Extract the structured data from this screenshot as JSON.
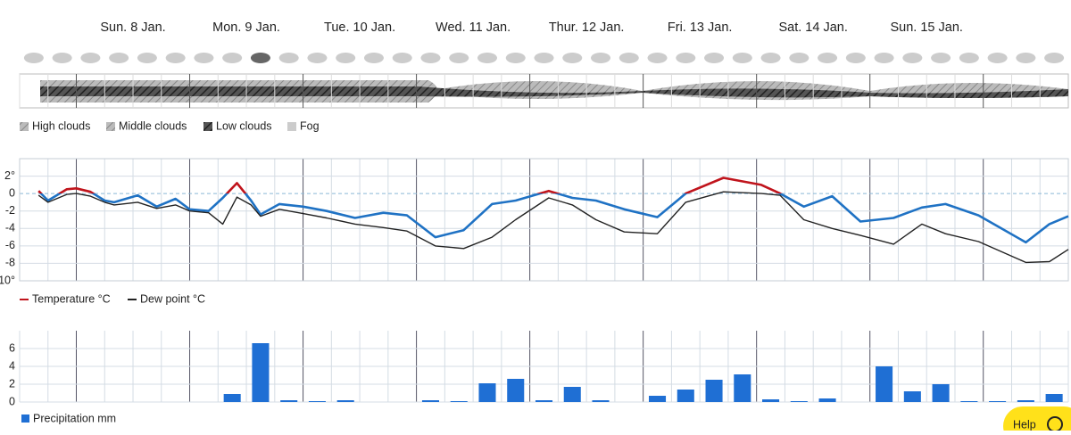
{
  "days": [
    "Sun. 8 Jan.",
    "Mon. 9 Jan.",
    "Tue. 10 Jan.",
    "Wed. 11 Jan.",
    "Thur. 12 Jan.",
    "Fri. 13 Jan.",
    "Sat. 14 Jan.",
    "Sun. 15 Jan."
  ],
  "cloud_legend": [
    "High clouds",
    "Middle clouds",
    "Low clouds",
    "Fog"
  ],
  "help": "Help",
  "chart_data": [
    {
      "type": "line",
      "x": [
        4,
        6,
        10,
        12,
        15,
        18,
        20,
        25,
        29,
        33,
        36,
        40,
        43,
        46,
        49,
        51,
        55,
        60,
        65,
        71,
        77,
        82,
        88,
        94,
        100,
        105,
        112,
        117,
        122,
        128,
        135,
        141,
        149,
        157,
        161,
        166,
        172,
        178,
        185,
        191,
        196,
        203,
        213,
        218,
        222
      ],
      "xlim": [
        0,
        222
      ],
      "ylim": [
        -10,
        4
      ],
      "yticks": [
        {
          "value": 2,
          "label": "2°"
        },
        0,
        -2,
        -4,
        -6,
        -8,
        {
          "value": -10,
          "label": "-10°"
        }
      ],
      "grid": true,
      "series": [
        {
          "name": "Temperature °C",
          "color": "#1f72c4",
          "color_above_zero": "#c0141c",
          "values": [
            0.3,
            -0.8,
            0.5,
            0.6,
            0.2,
            -0.8,
            -1,
            -0.2,
            -1.5,
            -0.6,
            -1.8,
            -2,
            -0.5,
            1.2,
            -0.8,
            -2.4,
            -1.2,
            -1.5,
            -2,
            -2.8,
            -2.2,
            -2.5,
            -5,
            -4.2,
            -1.2,
            -0.8,
            0.3,
            -0.5,
            -0.8,
            -1.8,
            -2.7,
            0,
            1.8,
            1,
            0,
            -1.5,
            -0.3,
            -3.2,
            -2.8,
            -1.6,
            -1.2,
            -2.5,
            -5.6,
            -3.5,
            -2.6
          ]
        },
        {
          "name": "Dew point °C",
          "color": "#222222",
          "values": [
            -0.2,
            -1,
            -0.1,
            0,
            -0.3,
            -1,
            -1.3,
            -1,
            -1.7,
            -1.3,
            -2,
            -2.2,
            -3.5,
            -0.4,
            -1.3,
            -2.6,
            -1.8,
            -2.3,
            -2.8,
            -3.5,
            -3.9,
            -4.3,
            -6,
            -6.3,
            -5,
            -3,
            -0.5,
            -1.3,
            -3,
            -4.4,
            -4.6,
            -1,
            0.2,
            0,
            -0.2,
            -3,
            -4,
            -4.8,
            -5.8,
            -3.5,
            -4.6,
            -5.5,
            -7.9,
            -7.8,
            -6.4
          ]
        }
      ]
    },
    {
      "type": "bar",
      "categories": [
        null,
        null,
        null,
        null,
        null,
        null,
        null,
        null,
        null,
        null,
        null,
        null,
        null,
        null,
        null,
        null,
        null,
        null,
        null,
        null,
        null,
        null,
        null,
        null,
        null,
        null,
        null,
        null,
        null,
        null,
        null,
        null,
        null,
        null,
        null,
        null,
        null
      ],
      "ylim": [
        0,
        8
      ],
      "yticks": [
        0,
        2,
        4,
        6
      ],
      "grid": true,
      "series": [
        {
          "name": "Precipitation mm",
          "color": "#1f6fd4",
          "values": [
            0,
            0,
            0,
            0,
            0,
            0,
            0,
            0.9,
            6.6,
            0.2,
            0.1,
            0.2,
            0,
            0,
            0.2,
            0.1,
            2.1,
            2.6,
            0.2,
            1.7,
            0.2,
            0,
            0.7,
            1.4,
            2.5,
            3.1,
            0.3,
            0.1,
            0.4,
            0,
            4,
            1.2,
            2,
            0.1,
            0.1,
            0.2,
            0.9
          ]
        }
      ]
    }
  ]
}
